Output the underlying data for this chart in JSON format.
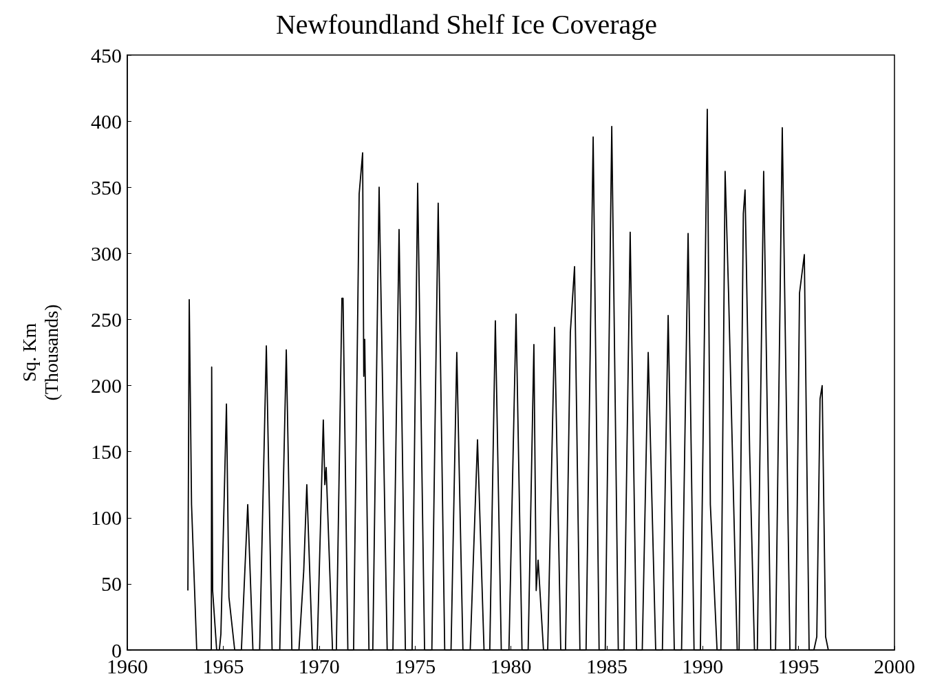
{
  "chart_data": {
    "type": "line",
    "title": "Newfoundland Shelf Ice Coverage",
    "ylabel": "Sq. Km\n(Thousands)",
    "xlim": [
      1960,
      2000
    ],
    "xticks": [
      1960,
      1965,
      1970,
      1975,
      1980,
      1985,
      1990,
      1995,
      2000
    ],
    "ylim": [
      0,
      450
    ],
    "yticks": [
      0,
      50,
      100,
      150,
      200,
      250,
      300,
      350,
      400,
      450
    ],
    "grid": false,
    "marker": "none",
    "line_style": "solid",
    "series": [
      {
        "color": "#000000",
        "x": [
          1963.16,
          1963.23,
          1963.35,
          1963.62,
          1964.38,
          1964.4,
          1964.45,
          1964.66,
          1964.8,
          1964.88,
          1965.17,
          1965.3,
          1965.6,
          1965.95,
          1966.28,
          1966.55,
          1966.9,
          1967.25,
          1967.55,
          1967.95,
          1968.29,
          1968.58,
          1968.95,
          1969.2,
          1969.36,
          1969.65,
          1969.9,
          1970.22,
          1970.3,
          1970.37,
          1970.7,
          1970.9,
          1971.19,
          1971.25,
          1971.5,
          1971.8,
          1972.09,
          1972.27,
          1972.33,
          1972.38,
          1972.6,
          1972.8,
          1973.13,
          1973.55,
          1973.85,
          1974.17,
          1974.5,
          1974.85,
          1975.14,
          1975.5,
          1975.88,
          1976.21,
          1976.55,
          1976.88,
          1977.18,
          1977.5,
          1977.88,
          1978.26,
          1978.6,
          1978.9,
          1979.19,
          1979.5,
          1979.9,
          1980.27,
          1980.58,
          1980.9,
          1981.2,
          1981.32,
          1981.42,
          1981.7,
          1981.92,
          1982.28,
          1982.6,
          1982.85,
          1983.1,
          1983.32,
          1983.6,
          1983.92,
          1984.29,
          1984.6,
          1984.92,
          1985.26,
          1985.6,
          1985.9,
          1986.22,
          1986.55,
          1986.85,
          1987.16,
          1987.55,
          1987.9,
          1988.2,
          1988.52,
          1988.9,
          1989.24,
          1989.55,
          1989.88,
          1990.24,
          1990.4,
          1990.75,
          1990.95,
          1991.17,
          1991.35,
          1991.8,
          1991.9,
          1992.12,
          1992.21,
          1992.45,
          1992.7,
          1992.85,
          1993.18,
          1993.55,
          1993.8,
          1994.15,
          1994.55,
          1994.85,
          1995.05,
          1995.3,
          1995.55,
          1995.8,
          1995.95,
          1996.12,
          1996.23,
          1996.41,
          1996.55
        ],
        "values": [
          45,
          265,
          110,
          0,
          0,
          214,
          45,
          0,
          0,
          12,
          186,
          40,
          0,
          0,
          110,
          0,
          0,
          230,
          0,
          0,
          227,
          0,
          0,
          60,
          125,
          0,
          0,
          174,
          125,
          138,
          0,
          0,
          266,
          266,
          0,
          0,
          345,
          376,
          207,
          235,
          0,
          0,
          350,
          0,
          0,
          318,
          0,
          0,
          353,
          0,
          0,
          338,
          0,
          0,
          225,
          0,
          0,
          159,
          0,
          0,
          249,
          0,
          0,
          254,
          0,
          0,
          231,
          45,
          68,
          0,
          0,
          244,
          0,
          0,
          240,
          290,
          0,
          0,
          388,
          0,
          0,
          396,
          0,
          0,
          316,
          0,
          0,
          225,
          0,
          0,
          253,
          0,
          0,
          315,
          0,
          0,
          409,
          110,
          0,
          0,
          362,
          270,
          0,
          0,
          330,
          348,
          150,
          0,
          0,
          362,
          0,
          0,
          395,
          0,
          0,
          270,
          299,
          0,
          0,
          10,
          190,
          200,
          10,
          0
        ]
      }
    ]
  }
}
